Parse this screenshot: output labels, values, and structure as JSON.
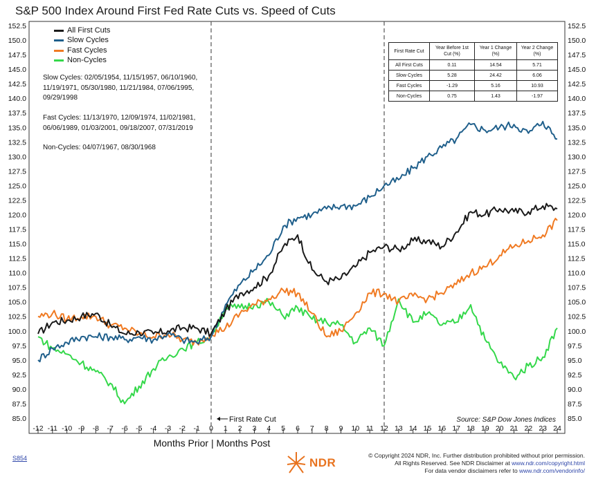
{
  "title": "S&P 500 Index Around First Fed Rate Cuts vs. Speed of Cuts",
  "legend": [
    {
      "label": "All First Cuts",
      "color": "#1a1a1a"
    },
    {
      "label": "Slow Cycles",
      "color": "#1f5f8b"
    },
    {
      "label": "Fast Cycles",
      "color": "#f07a22"
    },
    {
      "label": "Non-Cycles",
      "color": "#34d84a"
    }
  ],
  "notes": {
    "slow": "Slow Cycles: 02/05/1954, 11/15/1957, 06/10/1960, 11/19/1971, 05/30/1980, 11/21/1984, 07/06/1995, 09/29/1998",
    "fast": "Fast Cycles: 11/13/1970, 12/09/1974, 11/02/1981, 06/06/1989, 01/03/2001, 09/18/2007, 07/31/2019",
    "non": "Non-Cycles: 04/07/1967, 08/30/1968"
  },
  "table": {
    "headers": [
      "First Rate Cut",
      "Year Before 1st Cut (%)",
      "Year 1 Change (%)",
      "Year 2 Change (%)"
    ],
    "rows": [
      [
        "All First Cuts",
        "0.11",
        "14.54",
        "5.71"
      ],
      [
        "Slow Cycles",
        "5.28",
        "24.42",
        "6.06"
      ],
      [
        "Fast Cycles",
        "-1.29",
        "5.16",
        "10.93"
      ],
      [
        "Non-Cycles",
        "0.75",
        "1.43",
        "-1.97"
      ]
    ]
  },
  "annotations": {
    "first_rate_cut": "First Rate Cut",
    "source": "Source:  S&P Dow Jones Indices",
    "x_axis_title": "Months Prior | Months Post"
  },
  "footer": {
    "code": "S854",
    "logo_text": "NDR",
    "line1": "© Copyright 2024 NDR, Inc. Further distribution prohibited without prior permission.",
    "line2_text": "All Rights Reserved. See NDR Disclaimer at ",
    "line2_link": "www.ndr.com/copyright.html",
    "line3_text": "For data vendor disclaimers refer to ",
    "line3_link": "www.ndr.com/vendorinfo/"
  },
  "chart_data": {
    "type": "line",
    "title": "S&P 500 Index Around First Fed Rate Cuts vs. Speed of Cuts",
    "xlabel": "Months Prior | Months Post",
    "ylabel": "",
    "xlim": [
      -12,
      24
    ],
    "ylim": [
      85,
      152.5
    ],
    "x_ticks": [
      -12,
      -11,
      -10,
      -9,
      -8,
      -7,
      -6,
      -5,
      -4,
      -3,
      -2,
      -1,
      0,
      1,
      2,
      3,
      4,
      5,
      6,
      7,
      8,
      9,
      10,
      11,
      12,
      13,
      14,
      15,
      16,
      17,
      18,
      19,
      20,
      21,
      22,
      23,
      24
    ],
    "y_ticks": [
      85.0,
      87.5,
      90.0,
      92.5,
      95.0,
      97.5,
      100.0,
      102.5,
      105.0,
      107.5,
      110.0,
      112.5,
      115.0,
      117.5,
      120.0,
      122.5,
      125.0,
      127.5,
      130.0,
      132.5,
      135.0,
      137.5,
      140.0,
      142.5,
      145.0,
      147.5,
      150.0,
      152.5
    ],
    "reference_lines_x": [
      0,
      12
    ],
    "legend_position": "top-left",
    "x": [
      -12,
      -11,
      -10,
      -9,
      -8,
      -7,
      -6,
      -5,
      -4,
      -3,
      -2,
      -1,
      0,
      1,
      2,
      3,
      4,
      5,
      6,
      7,
      8,
      9,
      10,
      11,
      12,
      13,
      14,
      15,
      16,
      17,
      18,
      19,
      20,
      21,
      22,
      23,
      24
    ],
    "series": [
      {
        "name": "All First Cuts",
        "color": "#1a1a1a",
        "values": [
          99.5,
          101.5,
          101.8,
          102.5,
          103.0,
          101.0,
          99.5,
          99.8,
          99.5,
          100.0,
          100.5,
          100.5,
          99.5,
          103.5,
          106.5,
          107.5,
          109.5,
          114.5,
          116.5,
          110.5,
          108.5,
          109.0,
          111.0,
          113.5,
          114.5,
          114.0,
          115.5,
          115.5,
          114.5,
          117.0,
          120.5,
          120.0,
          121.0,
          120.5,
          120.5,
          121.5,
          121.0
        ]
      },
      {
        "name": "Slow Cycles",
        "color": "#1f5f8b",
        "values": [
          95.0,
          97.0,
          98.0,
          99.0,
          99.0,
          99.0,
          98.5,
          99.0,
          98.5,
          99.5,
          98.5,
          98.0,
          99.0,
          104.5,
          108.0,
          110.5,
          113.0,
          118.0,
          119.5,
          120.0,
          121.0,
          121.5,
          121.5,
          123.0,
          125.0,
          126.0,
          128.0,
          130.0,
          131.5,
          133.0,
          135.5,
          134.5,
          135.0,
          135.5,
          134.0,
          136.0,
          133.0
        ]
      },
      {
        "name": "Fast Cycles",
        "color": "#f07a22",
        "values": [
          102.5,
          103.0,
          102.0,
          102.5,
          102.5,
          101.0,
          100.5,
          99.5,
          99.0,
          99.5,
          98.5,
          98.0,
          99.5,
          100.5,
          103.0,
          104.5,
          105.5,
          107.0,
          106.5,
          103.0,
          99.0,
          100.0,
          103.0,
          106.5,
          106.5,
          105.0,
          106.0,
          105.5,
          106.5,
          108.0,
          110.0,
          111.0,
          113.0,
          114.5,
          115.5,
          116.5,
          119.0
        ]
      },
      {
        "name": "Non-Cycles",
        "color": "#34d84a",
        "values": [
          99.0,
          97.0,
          96.0,
          94.5,
          93.0,
          91.0,
          87.5,
          90.5,
          93.5,
          95.5,
          97.0,
          98.0,
          99.0,
          104.0,
          104.0,
          104.5,
          105.0,
          102.5,
          104.0,
          102.0,
          101.5,
          101.0,
          98.0,
          100.5,
          97.5,
          105.5,
          101.5,
          103.0,
          101.0,
          101.5,
          104.5,
          98.5,
          94.5,
          92.0,
          94.0,
          95.5,
          100.5
        ]
      }
    ]
  }
}
